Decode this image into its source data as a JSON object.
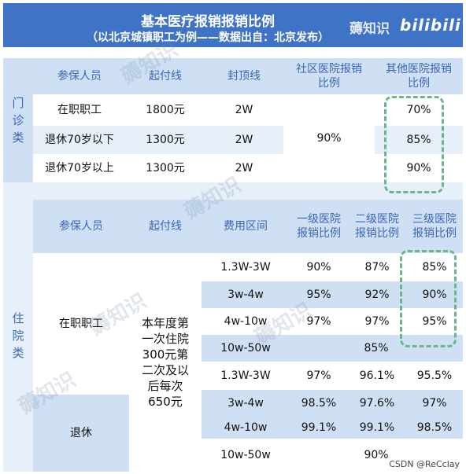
{
  "header": {
    "title": "基本医疗报销报销比例",
    "subtitle": "（以北京城镇职工为例——数据出自：北京发布）",
    "watermark": "薅知识",
    "brand": "bilibili"
  },
  "outpatient": {
    "label": "门诊类",
    "headers": [
      "参保人员",
      "起付线",
      "封顶线",
      "社区医院报销比例",
      "其他医院报销比例"
    ],
    "rows": [
      {
        "person": "在职职工",
        "deductible": "1800元",
        "cap": "2W",
        "other": "70%"
      },
      {
        "person": "退休70岁以下",
        "deductible": "1300元",
        "cap": "2W",
        "other": "85%"
      },
      {
        "person": "退休70岁以上",
        "deductible": "1300元",
        "cap": "2W",
        "other": "90%"
      }
    ],
    "community_ratio": "90%"
  },
  "inpatient": {
    "label": "住院类",
    "headers": [
      "参保人员",
      "起付线",
      "费用区间",
      "一级医院报销比例",
      "二级医院报销比例",
      "三级医院报销比例"
    ],
    "employee": "在职职工",
    "retired": "退休",
    "deductible_note": "本年度第一次住院300元第二次及以后每次650元",
    "rows": [
      {
        "range": "1.3W-3W",
        "l1": "90%",
        "l2": "87%",
        "l3": "85%"
      },
      {
        "range": "3w-4w",
        "l1": "95%",
        "l2": "92%",
        "l3": "90%"
      },
      {
        "range": "4w-10w",
        "l1": "97%",
        "l2": "97%",
        "l3": "95%"
      },
      {
        "range": "10w-50w",
        "merged": "85%"
      },
      {
        "range": "1.3W-3W",
        "l1": "97%",
        "l2": "96.1%",
        "l3": "95.5%"
      },
      {
        "range": "3w-4w",
        "l1": "98.5%",
        "l2": "97.6%",
        "l3": "97%"
      },
      {
        "range": "4w-10w",
        "l1": "99.1%",
        "l2": "99.1%",
        "l3": "98.5%"
      },
      {
        "range": "10w-50w",
        "merged": "90%"
      }
    ]
  },
  "footer": {
    "credit": "CSDN @ReCclay"
  },
  "colors": {
    "header": "#3f73c6",
    "light_blue": "#cfe0f5",
    "dash_green": "#6ab58a"
  }
}
